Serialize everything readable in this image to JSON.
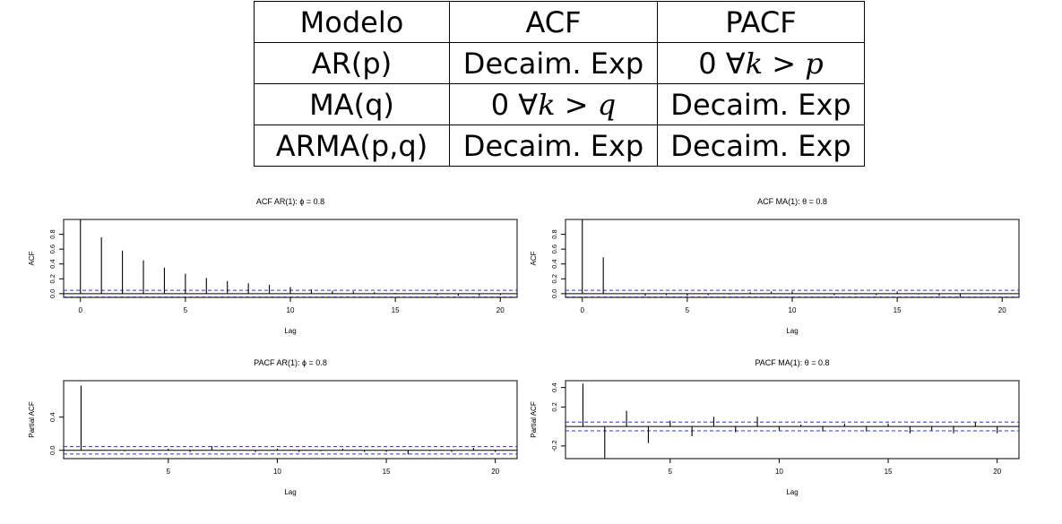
{
  "table": {
    "headers": [
      "Modelo",
      "ACF",
      "PACF"
    ],
    "rows": [
      [
        "AR(p)",
        "Decaim. Exp",
        "0  ∀k > p"
      ],
      [
        "MA(q)",
        "0  ∀k > q",
        "Decaim. Exp"
      ],
      [
        "ARMA(p,q)",
        "Decaim. Exp",
        "Decaim. Exp"
      ]
    ]
  },
  "chart_data": [
    {
      "type": "bar",
      "title": "ACF AR(1): ϕ = 0.8",
      "xlabel": "Lag",
      "ylabel": "ACF",
      "xlim": [
        -0.8,
        20.8
      ],
      "ylim": [
        -0.05,
        1.0
      ],
      "xticks": [
        0,
        5,
        10,
        15,
        20
      ],
      "yticks": [
        "0.0",
        "0.2",
        "0.4",
        "0.6",
        "0.8"
      ],
      "ytick_values": [
        0,
        0.2,
        0.4,
        0.6,
        0.8
      ],
      "conf_bound": 0.0447,
      "bound_color": "#3333cc",
      "x": [
        0,
        1,
        2,
        3,
        4,
        5,
        6,
        7,
        8,
        9,
        10,
        11,
        12,
        13,
        14,
        15,
        16,
        17,
        18,
        19,
        20
      ],
      "values": [
        1.0,
        0.76,
        0.58,
        0.45,
        0.35,
        0.27,
        0.21,
        0.17,
        0.14,
        0.12,
        0.09,
        0.06,
        0.04,
        0.03,
        0.02,
        0.01,
        0.0,
        -0.02,
        -0.03,
        -0.03,
        -0.02
      ]
    },
    {
      "type": "bar",
      "title": "ACF MA(1): θ = 0.8",
      "xlabel": "Lag",
      "ylabel": "ACF",
      "xlim": [
        -0.8,
        20.8
      ],
      "ylim": [
        -0.05,
        1.0
      ],
      "xticks": [
        0,
        5,
        10,
        15,
        20
      ],
      "yticks": [
        "0.0",
        "0.2",
        "0.4",
        "0.6",
        "0.8"
      ],
      "ytick_values": [
        0,
        0.2,
        0.4,
        0.6,
        0.8
      ],
      "conf_bound": 0.0447,
      "bound_color": "#3333cc",
      "x": [
        0,
        1,
        2,
        3,
        4,
        5,
        6,
        7,
        8,
        9,
        10,
        11,
        12,
        13,
        14,
        15,
        16,
        17,
        18,
        19,
        20
      ],
      "values": [
        1.0,
        0.49,
        0.0,
        -0.03,
        -0.02,
        -0.03,
        -0.02,
        -0.01,
        0.02,
        0.03,
        0.03,
        0.0,
        -0.02,
        -0.01,
        -0.02,
        0.03,
        -0.01,
        -0.03,
        -0.04,
        -0.01,
        0.0
      ]
    },
    {
      "type": "bar",
      "title": "PACF AR(1): ϕ = 0.8",
      "xlabel": "Lag",
      "ylabel": "Partial ACF",
      "xlim": [
        0.2,
        21.0
      ],
      "ylim": [
        -0.1,
        0.84
      ],
      "xticks": [
        5,
        10,
        15,
        20
      ],
      "yticks": [
        "0.0",
        "0.4"
      ],
      "ytick_values": [
        0,
        0.4
      ],
      "conf_bound": 0.0447,
      "bound_color": "#3333cc",
      "x": [
        1,
        2,
        3,
        4,
        5,
        6,
        7,
        8,
        9,
        10,
        11,
        12,
        13,
        14,
        15,
        16,
        17,
        18,
        19,
        20
      ],
      "values": [
        0.78,
        0.0,
        -0.01,
        0.0,
        0.02,
        -0.02,
        0.05,
        0.0,
        -0.02,
        0.02,
        -0.02,
        -0.01,
        0.02,
        -0.02,
        -0.02,
        -0.05,
        -0.01,
        -0.02,
        0.03,
        -0.02
      ]
    },
    {
      "type": "bar",
      "title": "PACF MA(1): θ = 0.8",
      "xlabel": "Lag",
      "ylabel": "Partial ACF",
      "xlim": [
        0.2,
        21.0
      ],
      "ylim": [
        -0.33,
        0.47
      ],
      "xticks": [
        5,
        10,
        15,
        20
      ],
      "yticks": [
        "-0.2",
        "0.2",
        "0.4"
      ],
      "ytick_values": [
        -0.2,
        0.2,
        0.4
      ],
      "conf_bound": 0.0447,
      "bound_color": "#3333cc",
      "x": [
        1,
        2,
        3,
        4,
        5,
        6,
        7,
        8,
        9,
        10,
        11,
        12,
        13,
        14,
        15,
        16,
        17,
        18,
        19,
        20
      ],
      "values": [
        0.44,
        -0.33,
        0.16,
        -0.17,
        0.06,
        -0.1,
        0.1,
        -0.06,
        0.1,
        -0.04,
        0.02,
        -0.05,
        0.03,
        -0.05,
        0.03,
        -0.07,
        -0.04,
        -0.07,
        0.04,
        -0.07
      ]
    }
  ]
}
